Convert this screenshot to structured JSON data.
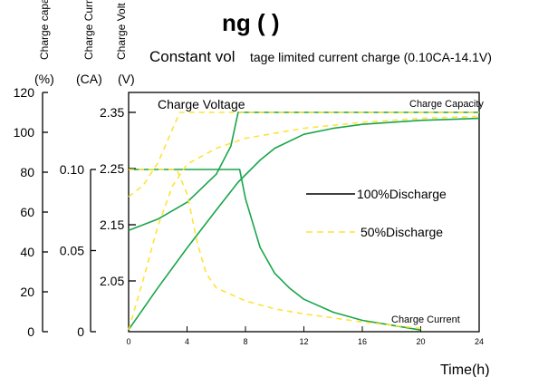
{
  "header": {
    "title_visible": "ng        (      )",
    "title_color": "#29abe2",
    "subtitle_big": "Constant vol",
    "subtitle_small": "tage limited current charge (0.10CA-14.1V)"
  },
  "axes": {
    "capacity": {
      "name": "Charge capa",
      "unit": "(%)",
      "ticks": [
        "120",
        "100",
        "80",
        "60",
        "40",
        "20",
        "0"
      ]
    },
    "current": {
      "name": "Charge Curr",
      "unit": "(CA)",
      "ticks": [
        "0.10",
        "0.05",
        "0"
      ]
    },
    "voltage": {
      "name": "Charge Volt",
      "unit": "(V)",
      "ticks": [
        "2.35",
        "2.25",
        "2.15",
        "2.05"
      ]
    },
    "time": {
      "label": "Time(h)",
      "ticks": [
        "0",
        "4",
        "8",
        "12",
        "16",
        "20",
        "24"
      ]
    }
  },
  "annotations": {
    "voltage": "Charge Voltage",
    "capacity": "Charge Capacity",
    "current": "Charge Current"
  },
  "legend": {
    "solid": "100%Discharge",
    "dashed": "50%Discharge",
    "placement": "right-middle"
  },
  "colors": {
    "solid": "#18a54a",
    "dashed": "#ffe335",
    "legend_solid": "#000000",
    "legend_dashed": "#ffe335"
  },
  "chart_data": {
    "type": "line",
    "title": "Constant voltage limited current charge (0.10CA-14.1V)",
    "xlabel": "Time(h)",
    "xlim": [
      0,
      24
    ],
    "x_ticks": [
      0,
      4,
      8,
      12,
      16,
      20,
      24
    ],
    "y_axes": [
      {
        "label": "Charge capa (%)",
        "lim": [
          0,
          120
        ],
        "ticks": [
          0,
          20,
          40,
          60,
          80,
          100,
          120
        ]
      },
      {
        "label": "Charge Curr (CA)",
        "lim": [
          0,
          0.1
        ],
        "ticks": [
          0,
          0.05,
          0.1
        ]
      },
      {
        "label": "Charge Volt (V)",
        "lim": [
          2.0,
          2.35
        ],
        "ticks": [
          2.05,
          2.15,
          2.25,
          2.35
        ]
      }
    ],
    "series": [
      {
        "name": "100%Discharge",
        "quantity": "Charge Voltage",
        "axis": "voltage",
        "style": "solid",
        "x": [
          0,
          2,
          4,
          6,
          7,
          7.5,
          8,
          24
        ],
        "y": [
          2.14,
          2.16,
          2.19,
          2.24,
          2.29,
          2.35,
          2.35,
          2.35
        ]
      },
      {
        "name": "100%Discharge",
        "quantity": "Charge Capacity",
        "axis": "capacity",
        "style": "solid",
        "x": [
          0,
          2,
          4,
          6,
          7.5,
          9,
          10,
          12,
          14,
          16,
          20,
          24
        ],
        "y": [
          1,
          22,
          42,
          61,
          75,
          86,
          92,
          99,
          102,
          104,
          106,
          107
        ]
      },
      {
        "name": "100%Discharge",
        "quantity": "Charge Current",
        "axis": "current",
        "style": "solid",
        "x": [
          0,
          7.6,
          8,
          9,
          10,
          11,
          12,
          14,
          16,
          18,
          20
        ],
        "y": [
          0.1,
          0.1,
          0.082,
          0.052,
          0.036,
          0.027,
          0.02,
          0.012,
          0.007,
          0.004,
          0.001
        ]
      },
      {
        "name": "50%Discharge",
        "quantity": "Charge Voltage",
        "axis": "voltage",
        "style": "dashed",
        "x": [
          0,
          1,
          2,
          3,
          3.5,
          24
        ],
        "y": [
          2.2,
          2.22,
          2.26,
          2.32,
          2.35,
          2.35
        ]
      },
      {
        "name": "50%Discharge",
        "quantity": "Charge Capacity",
        "axis": "capacity",
        "style": "dashed",
        "x": [
          0,
          1,
          2,
          3,
          4,
          6,
          8,
          12,
          16,
          20,
          24
        ],
        "y": [
          1,
          26,
          53,
          73,
          84,
          92,
          97,
          102,
          105,
          107,
          108
        ]
      },
      {
        "name": "50%Discharge",
        "quantity": "Charge Current",
        "axis": "current",
        "style": "dashed",
        "x": [
          0,
          3.3,
          4,
          4.7,
          5.3,
          6,
          8,
          10,
          12,
          16,
          20
        ],
        "y": [
          0.1,
          0.1,
          0.085,
          0.055,
          0.036,
          0.027,
          0.019,
          0.014,
          0.011,
          0.006,
          0.002
        ]
      }
    ]
  }
}
